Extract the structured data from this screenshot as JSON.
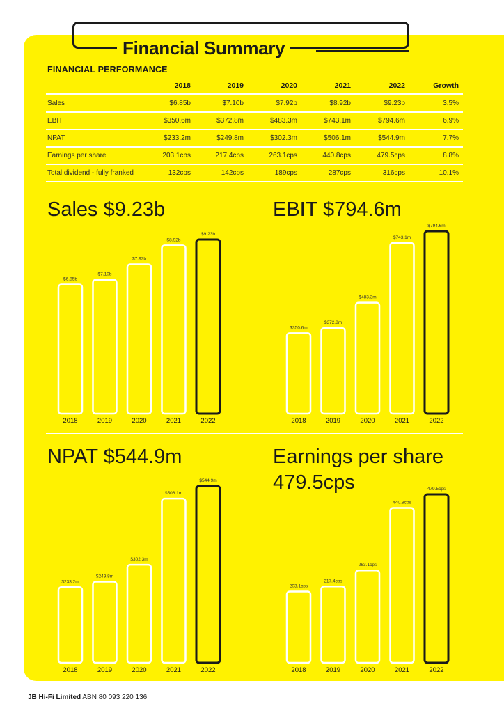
{
  "header": {
    "title": "Financial Summary"
  },
  "performance": {
    "heading": "FINANCIAL PERFORMANCE",
    "columns": [
      "",
      "2018",
      "2019",
      "2020",
      "2021",
      "2022",
      "Growth"
    ],
    "rows": [
      [
        "Sales",
        "$6.85b",
        "$7.10b",
        "$7.92b",
        "$8.92b",
        "$9.23b",
        "3.5%"
      ],
      [
        "EBIT",
        "$350.6m",
        "$372.8m",
        "$483.3m",
        "$743.1m",
        "$794.6m",
        "6.9%"
      ],
      [
        "NPAT",
        "$233.2m",
        "$249.8m",
        "$302.3m",
        "$506.1m",
        "$544.9m",
        "7.7%"
      ],
      [
        "Earnings per share",
        "203.1cps",
        "217.4cps",
        "263.1cps",
        "440.8cps",
        "479.5cps",
        "8.8%"
      ],
      [
        "Total dividend - fully franked",
        "132cps",
        "142cps",
        "189cps",
        "287cps",
        "316cps",
        "10.1%"
      ]
    ]
  },
  "colors": {
    "panel": "#fff200",
    "bar_outline": "#ffffff",
    "highlight_outline": "#1a1a1a",
    "text": "#1a1a1a"
  },
  "chart_data": [
    {
      "type": "bar",
      "title": "Sales $9.23b",
      "categories": [
        "2018",
        "2019",
        "2020",
        "2021",
        "2022"
      ],
      "values": [
        6.85,
        7.1,
        7.92,
        8.92,
        9.23
      ],
      "labels": [
        "$6.85b",
        "$7.10b",
        "$7.92b",
        "$8.92b",
        "$9.23b"
      ],
      "ylim": [
        0,
        9.23
      ],
      "highlight_index": 4
    },
    {
      "type": "bar",
      "title": "EBIT $794.6m",
      "categories": [
        "2018",
        "2019",
        "2020",
        "2021",
        "2022"
      ],
      "values": [
        350.6,
        372.8,
        483.3,
        743.1,
        794.6
      ],
      "labels": [
        "$350.6m",
        "$372.8m",
        "$483.3m",
        "$743.1m",
        "$794.6m"
      ],
      "ylim": [
        0,
        794.6
      ],
      "highlight_index": 4
    },
    {
      "type": "bar",
      "title": "NPAT $544.9m",
      "categories": [
        "2018",
        "2019",
        "2020",
        "2021",
        "2022"
      ],
      "values": [
        233.2,
        249.8,
        302.3,
        506.1,
        544.9
      ],
      "labels": [
        "$233.2m",
        "$249.8m",
        "$302.3m",
        "$506.1m",
        "$544.9m"
      ],
      "ylim": [
        0,
        544.9
      ],
      "highlight_index": 4
    },
    {
      "type": "bar",
      "title_lines": [
        "Earnings per share",
        "479.5cps"
      ],
      "categories": [
        "2018",
        "2019",
        "2020",
        "2021",
        "2022"
      ],
      "values": [
        203.1,
        217.4,
        263.1,
        440.8,
        479.5
      ],
      "labels": [
        "203.1cps",
        "217.4cps",
        "263.1cps",
        "440.8cps",
        "479.5cps"
      ],
      "ylim": [
        0,
        479.5
      ],
      "highlight_index": 4
    }
  ],
  "footer": {
    "company": "JB Hi-Fi Limited",
    "abn": "ABN 80 093 220 136"
  }
}
